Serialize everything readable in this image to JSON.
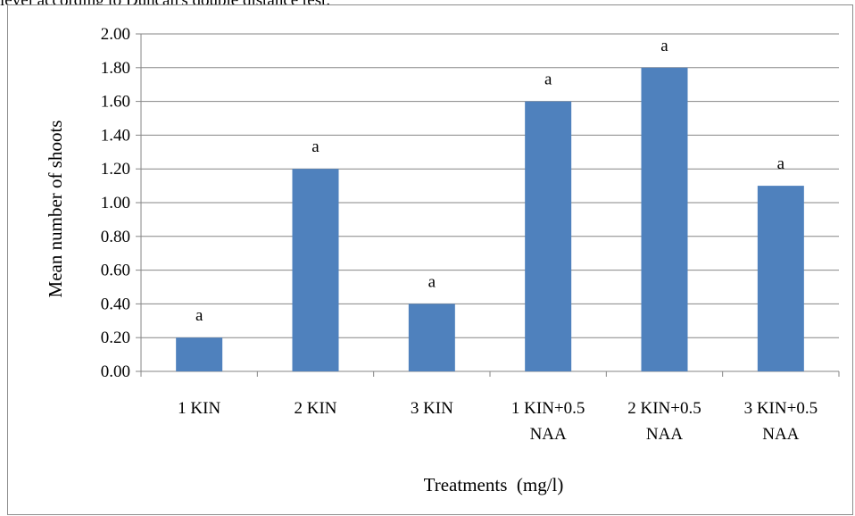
{
  "caption": "level according to Duncan's double distance test.",
  "chart_data": {
    "type": "bar",
    "categories": [
      [
        "1 KIN"
      ],
      [
        "2 KIN"
      ],
      [
        "3 KIN"
      ],
      [
        "1 KIN+0.5",
        "NAA"
      ],
      [
        "2 KIN+0.5",
        "NAA"
      ],
      [
        "3 KIN+0.5",
        "NAA"
      ]
    ],
    "values": [
      0.2,
      1.2,
      0.4,
      1.6,
      1.8,
      1.1
    ],
    "significance_letters": [
      "a",
      "a",
      "a",
      "a",
      "a",
      "a"
    ],
    "xlabel": "Treatments  (mg/l)",
    "ylabel": "Mean number of shoots",
    "ylim": [
      0,
      2.0
    ],
    "yticks": [
      "0.00",
      "0.20",
      "0.40",
      "0.60",
      "0.80",
      "1.00",
      "1.20",
      "1.40",
      "1.60",
      "1.80",
      "2.00"
    ],
    "grid": true,
    "bar_color": "#4f81bd",
    "gridline_color": "#868686"
  }
}
